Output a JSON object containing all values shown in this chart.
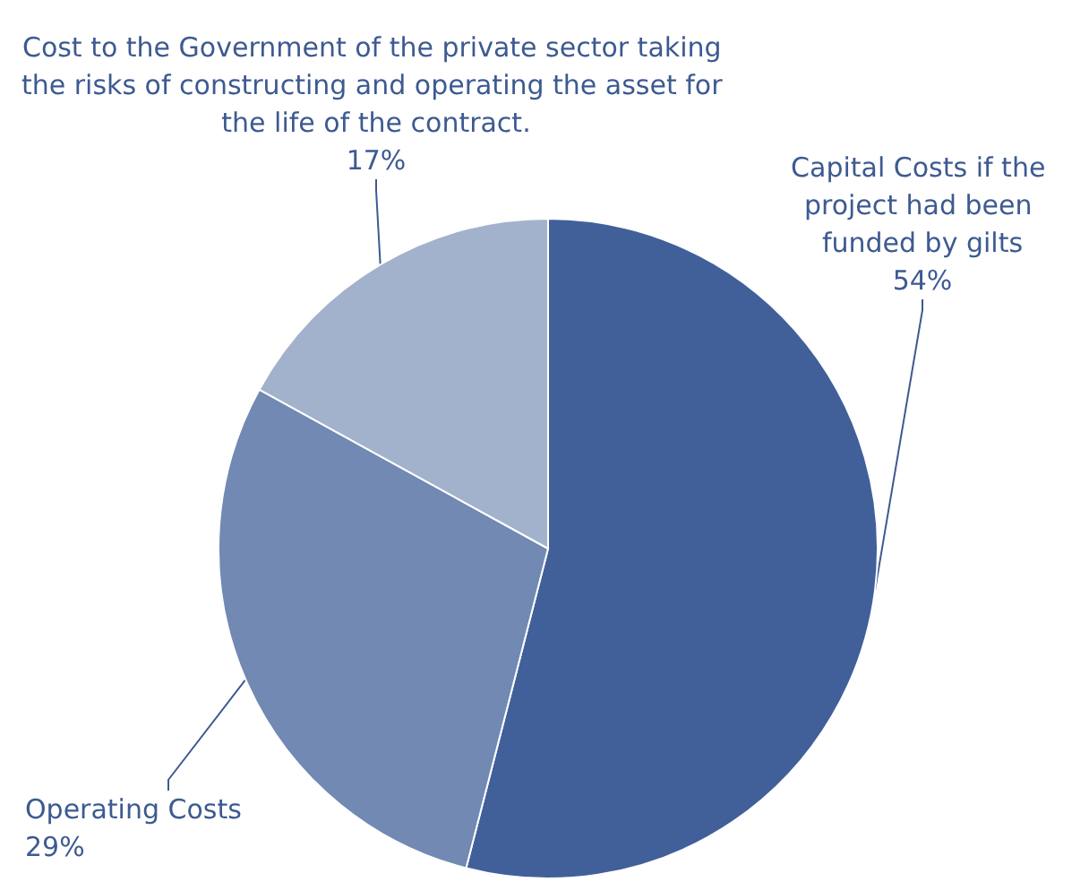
{
  "chart_data": {
    "type": "pie",
    "categories": [
      "Capital Costs if the project had been funded by gilts",
      "Operating Costs",
      "Cost to the Government of the private sector taking the risks of constructing and operating the asset for the life of the contract."
    ],
    "values": [
      54,
      29,
      17
    ],
    "value_labels": [
      "54%",
      "29%",
      "17%"
    ],
    "colors": [
      "#41609a",
      "#7189b3",
      "#a2b2cc"
    ]
  }
}
